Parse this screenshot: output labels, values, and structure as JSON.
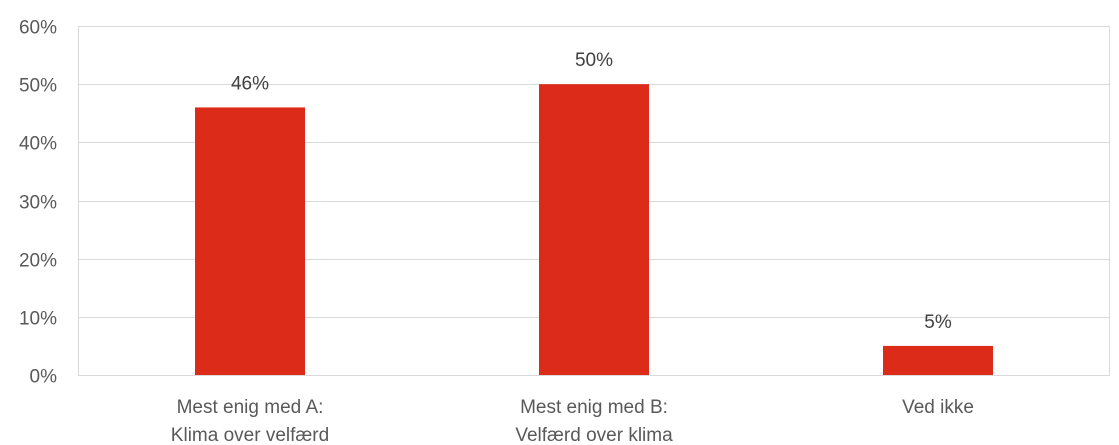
{
  "chart_data": {
    "type": "bar",
    "categories": [
      [
        "Mest enig med A:",
        "Klima over velfærd"
      ],
      [
        "Mest enig med B:",
        "Velfærd over klima"
      ],
      [
        "Ved ikke"
      ]
    ],
    "values": [
      46,
      50,
      5
    ],
    "value_labels": [
      "46%",
      "50%",
      "5%"
    ],
    "ylim": [
      0,
      60
    ],
    "yticks": [
      0,
      10,
      20,
      30,
      40,
      50,
      60
    ],
    "ytick_labels": [
      "0%",
      "10%",
      "20%",
      "30%",
      "40%",
      "50%",
      "60%"
    ],
    "grid": true,
    "legend": "none",
    "bar_color": "#dc2b18"
  }
}
